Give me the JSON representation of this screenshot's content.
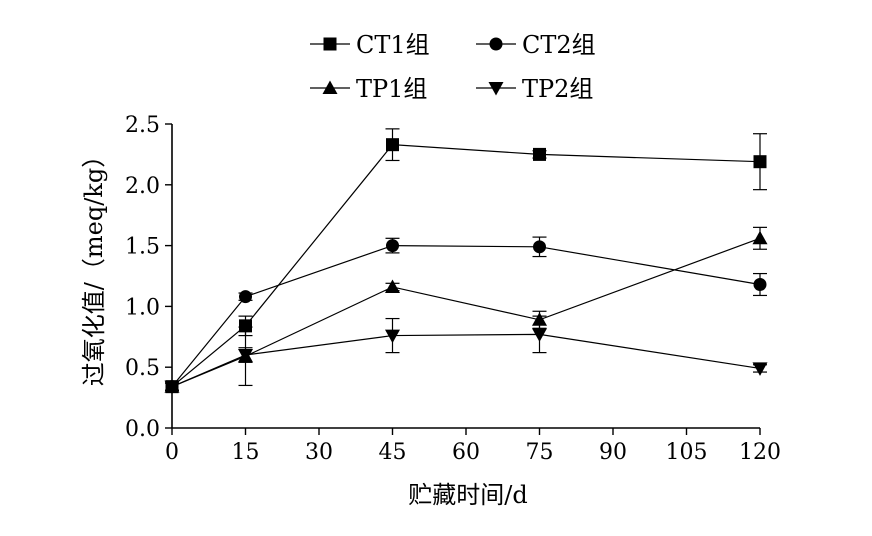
{
  "chart_data": {
    "type": "line",
    "xlabel": "贮藏时间/d",
    "ylabel": "过氧化值/（meq/kg）",
    "x": [
      0,
      15,
      45,
      75,
      120
    ],
    "xlim": [
      0,
      120
    ],
    "ylim": [
      0,
      2.5
    ],
    "xticks": [
      0,
      15,
      30,
      45,
      60,
      75,
      90,
      105,
      120
    ],
    "xtick_labels": [
      "0",
      "15",
      "30",
      "45",
      "60",
      "75",
      "90",
      "105",
      "120"
    ],
    "yticks": [
      0,
      0.5,
      1.0,
      1.5,
      2.0,
      2.5
    ],
    "ytick_labels": [
      "0.0",
      "0.5",
      "1.0",
      "1.5",
      "2.0",
      "2.5"
    ],
    "grid": false,
    "legend_position": "top-center",
    "series": [
      {
        "name": "CT1组",
        "marker": "square",
        "values": [
          0.34,
          0.84,
          2.33,
          2.25,
          2.19
        ],
        "errors": [
          0.03,
          0.08,
          0.13,
          0.03,
          0.23
        ]
      },
      {
        "name": "CT2组",
        "marker": "circle",
        "values": [
          0.34,
          1.08,
          1.5,
          1.49,
          1.18
        ],
        "errors": [
          0.03,
          0.03,
          0.06,
          0.08,
          0.09
        ]
      },
      {
        "name": "TP1组",
        "marker": "triangle-up",
        "values": [
          0.34,
          0.59,
          1.16,
          0.89,
          1.56
        ],
        "errors": [
          0.03,
          0.24,
          0.03,
          0.07,
          0.09
        ]
      },
      {
        "name": "TP2组",
        "marker": "triangle-down",
        "values": [
          0.34,
          0.6,
          0.76,
          0.77,
          0.49
        ],
        "errors": [
          0.03,
          0.06,
          0.14,
          0.15,
          0.03
        ]
      }
    ]
  }
}
